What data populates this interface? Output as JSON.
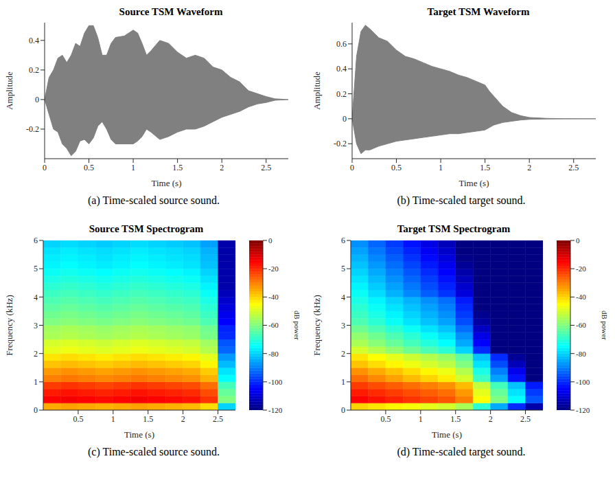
{
  "chart_data": [
    {
      "type": "area",
      "title": "Source TSM Waveform",
      "caption": "(a) Time-scaled source sound.",
      "x_label": "Time (s)",
      "y_label": "Amplitude",
      "x": [
        0,
        0.05,
        0.1,
        0.15,
        0.2,
        0.25,
        0.3,
        0.35,
        0.4,
        0.45,
        0.5,
        0.55,
        0.6,
        0.65,
        0.7,
        0.75,
        0.8,
        0.9,
        1,
        1.05,
        1.1,
        1.15,
        1.2,
        1.3,
        1.4,
        1.5,
        1.6,
        1.7,
        1.8,
        1.9,
        2,
        2.1,
        2.2,
        2.3,
        2.4,
        2.5,
        2.6,
        2.75
      ],
      "values": [
        [
          0,
          0
        ],
        [
          -0.1,
          0.15
        ],
        [
          -0.2,
          0.2
        ],
        [
          -0.22,
          0.28
        ],
        [
          -0.3,
          0.3
        ],
        [
          -0.33,
          0.25
        ],
        [
          -0.38,
          0.3
        ],
        [
          -0.35,
          0.38
        ],
        [
          -0.28,
          0.36
        ],
        [
          -0.27,
          0.45
        ],
        [
          -0.3,
          0.5
        ],
        [
          -0.26,
          0.5
        ],
        [
          -0.18,
          0.42
        ],
        [
          -0.15,
          0.3
        ],
        [
          -0.2,
          0.3
        ],
        [
          -0.27,
          0.38
        ],
        [
          -0.3,
          0.42
        ],
        [
          -0.3,
          0.43
        ],
        [
          -0.3,
          0.47
        ],
        [
          -0.28,
          0.45
        ],
        [
          -0.25,
          0.38
        ],
        [
          -0.2,
          0.3
        ],
        [
          -0.22,
          0.33
        ],
        [
          -0.27,
          0.4
        ],
        [
          -0.25,
          0.38
        ],
        [
          -0.22,
          0.32
        ],
        [
          -0.2,
          0.28
        ],
        [
          -0.2,
          0.3
        ],
        [
          -0.18,
          0.28
        ],
        [
          -0.15,
          0.22
        ],
        [
          -0.12,
          0.2
        ],
        [
          -0.1,
          0.15
        ],
        [
          -0.08,
          0.12
        ],
        [
          -0.05,
          0.06
        ],
        [
          -0.03,
          0.04
        ],
        [
          -0.02,
          0.02
        ],
        [
          -0.005,
          0.005
        ],
        [
          0,
          0
        ]
      ],
      "color": "#808080",
      "xlim": [
        0,
        2.75
      ],
      "xticks": [
        0,
        0.5,
        1,
        1.5,
        2,
        2.5
      ],
      "ylim": [
        -0.4,
        0.52
      ],
      "yticks": [
        -0.2,
        0,
        0.2,
        0.4
      ]
    },
    {
      "type": "area",
      "title": "Target TSM Waveform",
      "caption": "(b) Time-scaled target sound.",
      "x_label": "Time (s)",
      "y_label": "Amplitude",
      "x": [
        0,
        0.05,
        0.1,
        0.15,
        0.2,
        0.3,
        0.4,
        0.5,
        0.6,
        0.7,
        0.8,
        0.9,
        1,
        1.1,
        1.2,
        1.3,
        1.4,
        1.5,
        1.55,
        1.6,
        1.7,
        1.8,
        1.9,
        2,
        2.2,
        2.4,
        2.75
      ],
      "values": [
        [
          0,
          0
        ],
        [
          -0.2,
          0.5
        ],
        [
          -0.28,
          0.7
        ],
        [
          -0.25,
          0.75
        ],
        [
          -0.25,
          0.72
        ],
        [
          -0.22,
          0.65
        ],
        [
          -0.2,
          0.62
        ],
        [
          -0.18,
          0.55
        ],
        [
          -0.17,
          0.5
        ],
        [
          -0.16,
          0.48
        ],
        [
          -0.15,
          0.45
        ],
        [
          -0.14,
          0.42
        ],
        [
          -0.13,
          0.4
        ],
        [
          -0.12,
          0.38
        ],
        [
          -0.12,
          0.35
        ],
        [
          -0.11,
          0.33
        ],
        [
          -0.1,
          0.3
        ],
        [
          -0.09,
          0.27
        ],
        [
          -0.07,
          0.22
        ],
        [
          -0.05,
          0.18
        ],
        [
          -0.03,
          0.1
        ],
        [
          -0.02,
          0.05
        ],
        [
          -0.01,
          0.025
        ],
        [
          -0.005,
          0.01
        ],
        [
          -0.002,
          0.003
        ],
        [
          -0.001,
          0.001
        ],
        [
          0,
          0
        ]
      ],
      "color": "#808080",
      "xlim": [
        0,
        2.75
      ],
      "xticks": [
        0,
        0.5,
        1,
        1.5,
        2,
        2.5
      ],
      "ylim": [
        -0.32,
        0.77
      ],
      "yticks": [
        -0.2,
        0,
        0.2,
        0.4,
        0.6
      ]
    },
    {
      "type": "heatmap",
      "title": "Source TSM Spectrogram",
      "caption": "(c) Time-scaled source sound.",
      "x_label": "Time (s)",
      "y_label": "Frequency (kHz)",
      "time_bins": [
        0,
        0.25,
        0.5,
        0.75,
        1,
        1.25,
        1.5,
        1.75,
        2,
        2.25,
        2.5,
        2.75
      ],
      "frequency_bins": [
        0,
        0.25,
        0.5,
        0.75,
        1,
        1.25,
        1.5,
        1.75,
        2,
        2.25,
        2.5,
        2.75,
        3,
        3.25,
        3.5,
        3.75,
        4,
        4.25,
        4.5,
        4.75,
        5,
        5.25,
        5.5,
        5.75,
        6
      ],
      "cells": [
        [
          -35,
          -34,
          -35,
          -36,
          -35,
          -34,
          -35,
          -36,
          -37,
          -41,
          -80
        ],
        [
          -15,
          -14,
          -15,
          -16,
          -15,
          -14,
          -15,
          -16,
          -17,
          -21,
          -60
        ],
        [
          -18,
          -17,
          -18,
          -19,
          -18,
          -17,
          -18,
          -19,
          -20,
          -24,
          -63
        ],
        [
          -22,
          -21,
          -22,
          -23,
          -22,
          -21,
          -22,
          -23,
          -24,
          -28,
          -67
        ],
        [
          -30,
          -29,
          -30,
          -31,
          -30,
          -29,
          -30,
          -31,
          -32,
          -36,
          -75
        ],
        [
          -33,
          -32,
          -33,
          -34,
          -33,
          -32,
          -33,
          -34,
          -35,
          -39,
          -78
        ],
        [
          -38,
          -37,
          -38,
          -39,
          -38,
          -37,
          -38,
          -39,
          -40,
          -44,
          -83
        ],
        [
          -42,
          -41,
          -42,
          -43,
          -42,
          -41,
          -42,
          -43,
          -44,
          -48,
          -87
        ],
        [
          -48,
          -47,
          -48,
          -49,
          -48,
          -47,
          -48,
          -49,
          -50,
          -54,
          -93
        ],
        [
          -50,
          -49,
          -50,
          -51,
          -50,
          -49,
          -50,
          -51,
          -52,
          -56,
          -95
        ],
        [
          -55,
          -54,
          -55,
          -56,
          -55,
          -54,
          -55,
          -56,
          -57,
          -61,
          -100
        ],
        [
          -56,
          -55,
          -56,
          -57,
          -56,
          -55,
          -56,
          -57,
          -58,
          -62,
          -101
        ],
        [
          -60,
          -59,
          -60,
          -61,
          -60,
          -59,
          -60,
          -61,
          -62,
          -66,
          -105
        ],
        [
          -62,
          -61,
          -62,
          -63,
          -62,
          -61,
          -62,
          -63,
          -64,
          -68,
          -107
        ],
        [
          -64,
          -63,
          -64,
          -65,
          -64,
          -63,
          -64,
          -65,
          -66,
          -70,
          -109
        ],
        [
          -66,
          -65,
          -66,
          -67,
          -66,
          -65,
          -66,
          -67,
          -68,
          -72,
          -111
        ],
        [
          -68,
          -67,
          -68,
          -69,
          -68,
          -67,
          -68,
          -69,
          -70,
          -74,
          -113
        ],
        [
          -70,
          -69,
          -70,
          -71,
          -70,
          -69,
          -70,
          -71,
          -72,
          -76,
          -115
        ],
        [
          -72,
          -71,
          -72,
          -73,
          -72,
          -71,
          -72,
          -73,
          -74,
          -78,
          -115
        ],
        [
          -74,
          -73,
          -74,
          -75,
          -74,
          -73,
          -74,
          -75,
          -76,
          -80,
          -115
        ],
        [
          -76,
          -75,
          -76,
          -77,
          -76,
          -75,
          -76,
          -77,
          -78,
          -82,
          -115
        ],
        [
          -77,
          -76,
          -77,
          -78,
          -77,
          -76,
          -77,
          -78,
          -79,
          -83,
          -115
        ],
        [
          -78,
          -77,
          -78,
          -79,
          -78,
          -77,
          -78,
          -79,
          -80,
          -84,
          -115
        ],
        [
          -80,
          -79,
          -80,
          -81,
          -80,
          -79,
          -80,
          -81,
          -82,
          -86,
          -115
        ]
      ],
      "xlim": [
        0,
        2.75
      ],
      "xticks": [
        0.5,
        1,
        1.5,
        2,
        2.5
      ],
      "ylim": [
        0,
        6
      ],
      "yticks": [
        0,
        1,
        2,
        3,
        4,
        5,
        6
      ],
      "colorbar": {
        "label": "dB power",
        "range": [
          -120,
          0
        ],
        "ticks": [
          0,
          -20,
          -40,
          -60,
          -80,
          -100,
          -120
        ]
      }
    },
    {
      "type": "heatmap",
      "title": "Target TSM Spectrogram",
      "caption": "(d) Time-scaled target sound.",
      "x_label": "Time (s)",
      "y_label": "Frequency (kHz)",
      "time_bins": [
        0,
        0.25,
        0.5,
        0.75,
        1,
        1.25,
        1.5,
        1.75,
        2,
        2.25,
        2.5,
        2.75
      ],
      "frequency_bins": [
        0,
        0.25,
        0.5,
        0.75,
        1,
        1.25,
        1.5,
        1.75,
        2,
        2.25,
        2.5,
        2.75,
        3,
        3.25,
        3.5,
        3.75,
        4,
        4.25,
        4.5,
        4.75,
        5,
        5.25,
        5.5,
        5.75,
        6
      ],
      "cells": [
        [
          -40,
          -42,
          -44,
          -46,
          -48,
          -50,
          -55,
          -70,
          -85,
          -100,
          -115
        ],
        [
          -15,
          -17,
          -19,
          -21,
          -23,
          -25,
          -30,
          -45,
          -60,
          -75,
          -95
        ],
        [
          -18,
          -20,
          -22,
          -24,
          -26,
          -28,
          -33,
          -48,
          -63,
          -78,
          -98
        ],
        [
          -22,
          -24,
          -26,
          -28,
          -30,
          -32,
          -37,
          -52,
          -67,
          -82,
          -102
        ],
        [
          -28,
          -31,
          -34,
          -37,
          -40,
          -43,
          -50,
          -68,
          -86,
          -103,
          -120
        ],
        [
          -32,
          -35,
          -38,
          -41,
          -44,
          -47,
          -54,
          -72,
          -90,
          -107,
          -120
        ],
        [
          -38,
          -41,
          -44,
          -47,
          -50,
          -53,
          -60,
          -78,
          -96,
          -113,
          -120
        ],
        [
          -42,
          -45,
          -48,
          -51,
          -54,
          -57,
          -64,
          -82,
          -100,
          -117,
          -120
        ],
        [
          -50,
          -54,
          -58,
          -62,
          -66,
          -70,
          -80,
          -100,
          -120,
          -120,
          -120
        ],
        [
          -55,
          -59,
          -63,
          -67,
          -71,
          -75,
          -85,
          -105,
          -120,
          -120,
          -120
        ],
        [
          -58,
          -62,
          -66,
          -70,
          -74,
          -78,
          -88,
          -108,
          -120,
          -120,
          -120
        ],
        [
          -62,
          -66,
          -70,
          -74,
          -78,
          -82,
          -92,
          -112,
          -120,
          -120,
          -120
        ],
        [
          -66,
          -70,
          -74,
          -78,
          -82,
          -86,
          -96,
          -116,
          -120,
          -120,
          -120
        ],
        [
          -68,
          -72,
          -76,
          -80,
          -84,
          -88,
          -98,
          -118,
          -120,
          -120,
          -120
        ],
        [
          -70,
          -74,
          -78,
          -82,
          -86,
          -90,
          -100,
          -120,
          -120,
          -120,
          -120
        ],
        [
          -72,
          -76,
          -80,
          -84,
          -88,
          -92,
          -102,
          -120,
          -120,
          -120,
          -120
        ],
        [
          -74,
          -79,
          -84,
          -89,
          -94,
          -99,
          -109,
          -120,
          -120,
          -120,
          -120
        ],
        [
          -76,
          -81,
          -86,
          -91,
          -96,
          -101,
          -111,
          -120,
          -120,
          -120,
          -120
        ],
        [
          -78,
          -83,
          -88,
          -93,
          -98,
          -103,
          -113,
          -120,
          -120,
          -120,
          -120
        ],
        [
          -80,
          -85,
          -90,
          -95,
          -100,
          -105,
          -115,
          -120,
          -120,
          -120,
          -120
        ],
        [
          -82,
          -87,
          -92,
          -97,
          -102,
          -107,
          -117,
          -120,
          -120,
          -120,
          -120
        ],
        [
          -84,
          -89,
          -94,
          -99,
          -104,
          -109,
          -119,
          -120,
          -120,
          -120,
          -120
        ],
        [
          -86,
          -91,
          -96,
          -101,
          -106,
          -111,
          -120,
          -120,
          -120,
          -120,
          -120
        ],
        [
          -88,
          -93,
          -98,
          -103,
          -108,
          -113,
          -120,
          -120,
          -120,
          -120,
          -120
        ]
      ],
      "xlim": [
        0,
        2.75
      ],
      "xticks": [
        0.5,
        1,
        1.5,
        2,
        2.5
      ],
      "ylim": [
        0,
        6
      ],
      "yticks": [
        0,
        1,
        2,
        3,
        4,
        5,
        6
      ],
      "colorbar": {
        "label": "dB power",
        "range": [
          -120,
          0
        ],
        "ticks": [
          0,
          -20,
          -40,
          -60,
          -80,
          -100,
          -120
        ]
      }
    }
  ]
}
